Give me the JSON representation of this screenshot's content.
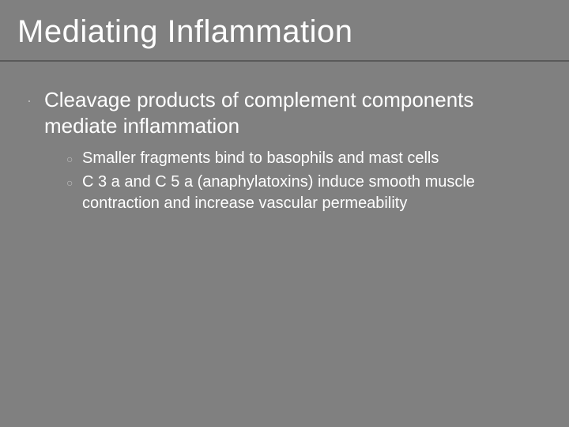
{
  "slide": {
    "title": "Mediating Inflammation",
    "background_color": "#808080",
    "title_color": "#ffffff",
    "title_fontsize": 40,
    "underline_color": "#595959",
    "text_color": "#ffffff",
    "bullet_color": "#bfbfbf",
    "main_fontsize": 26,
    "sub_fontsize": 20,
    "main_point": "Cleavage products of complement components mediate inflammation",
    "sub_points": [
      "Smaller fragments bind to basophils and mast cells",
      "C 3 a and C 5 a (anaphylatoxins) induce smooth muscle contraction and increase vascular permeability"
    ]
  }
}
